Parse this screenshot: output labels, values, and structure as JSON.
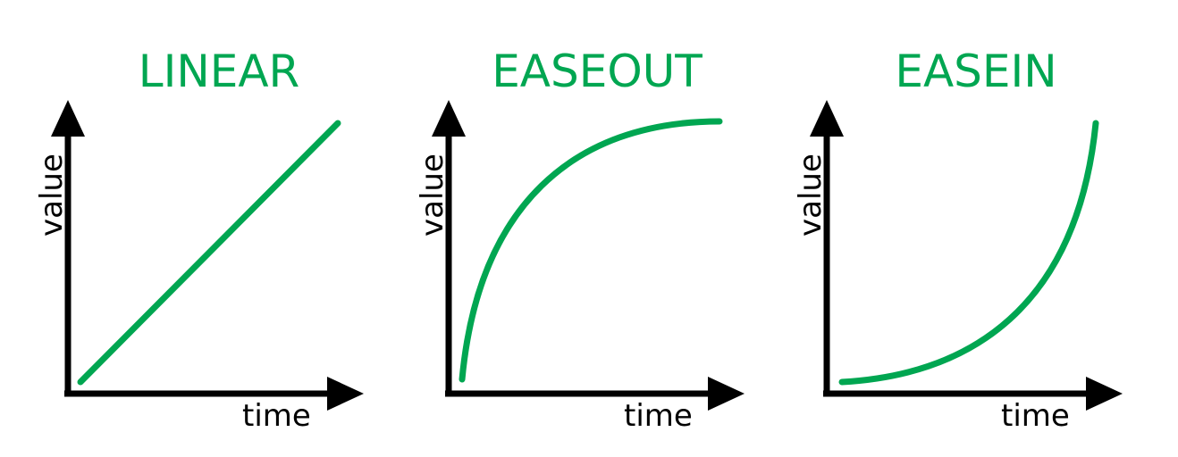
{
  "colors": {
    "curve": "#00a651",
    "title": "#00a651",
    "axis": "#000000"
  },
  "panels": [
    {
      "title": "LINEAR",
      "xlabel": "time",
      "ylabel": "value",
      "curve_type": "linear"
    },
    {
      "title": "EASEOUT",
      "xlabel": "time",
      "ylabel": "value",
      "curve_type": "ease-out"
    },
    {
      "title": "EASEIN",
      "xlabel": "time",
      "ylabel": "value",
      "curve_type": "ease-in"
    }
  ]
}
